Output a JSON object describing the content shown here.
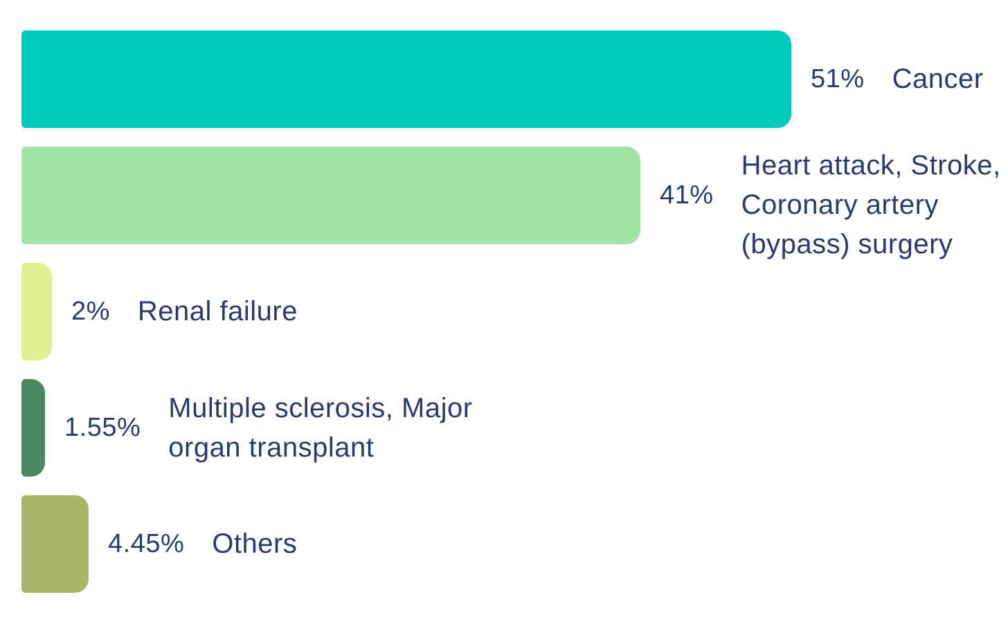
{
  "background_color": "#ffffff",
  "text_color": "#2A3A6D",
  "chart_data": {
    "type": "bar",
    "orientation": "horizontal",
    "unit": "percent",
    "title": "",
    "xlabel": "",
    "ylabel": "",
    "axes_visible": false,
    "legend": "none",
    "value_range": [
      0,
      51
    ],
    "rows": [
      {
        "value": 51,
        "pct_label": "51%",
        "category": "Cancer",
        "color": "#00C9BE"
      },
      {
        "value": 41,
        "pct_label": "41%",
        "category": "Heart attack, Stroke,\nCoronary artery\n(bypass) surgery",
        "color": "#A1E5A6"
      },
      {
        "value": 2,
        "pct_label": "2%",
        "category": "Renal failure",
        "color": "#DFF091"
      },
      {
        "value": 1.55,
        "pct_label": "1.55%",
        "category": "Multiple sclerosis, Major\norgan transplant",
        "color": "#4A8A62"
      },
      {
        "value": 4.45,
        "pct_label": "4.45%",
        "category": "Others",
        "color": "#A9B668"
      }
    ]
  }
}
